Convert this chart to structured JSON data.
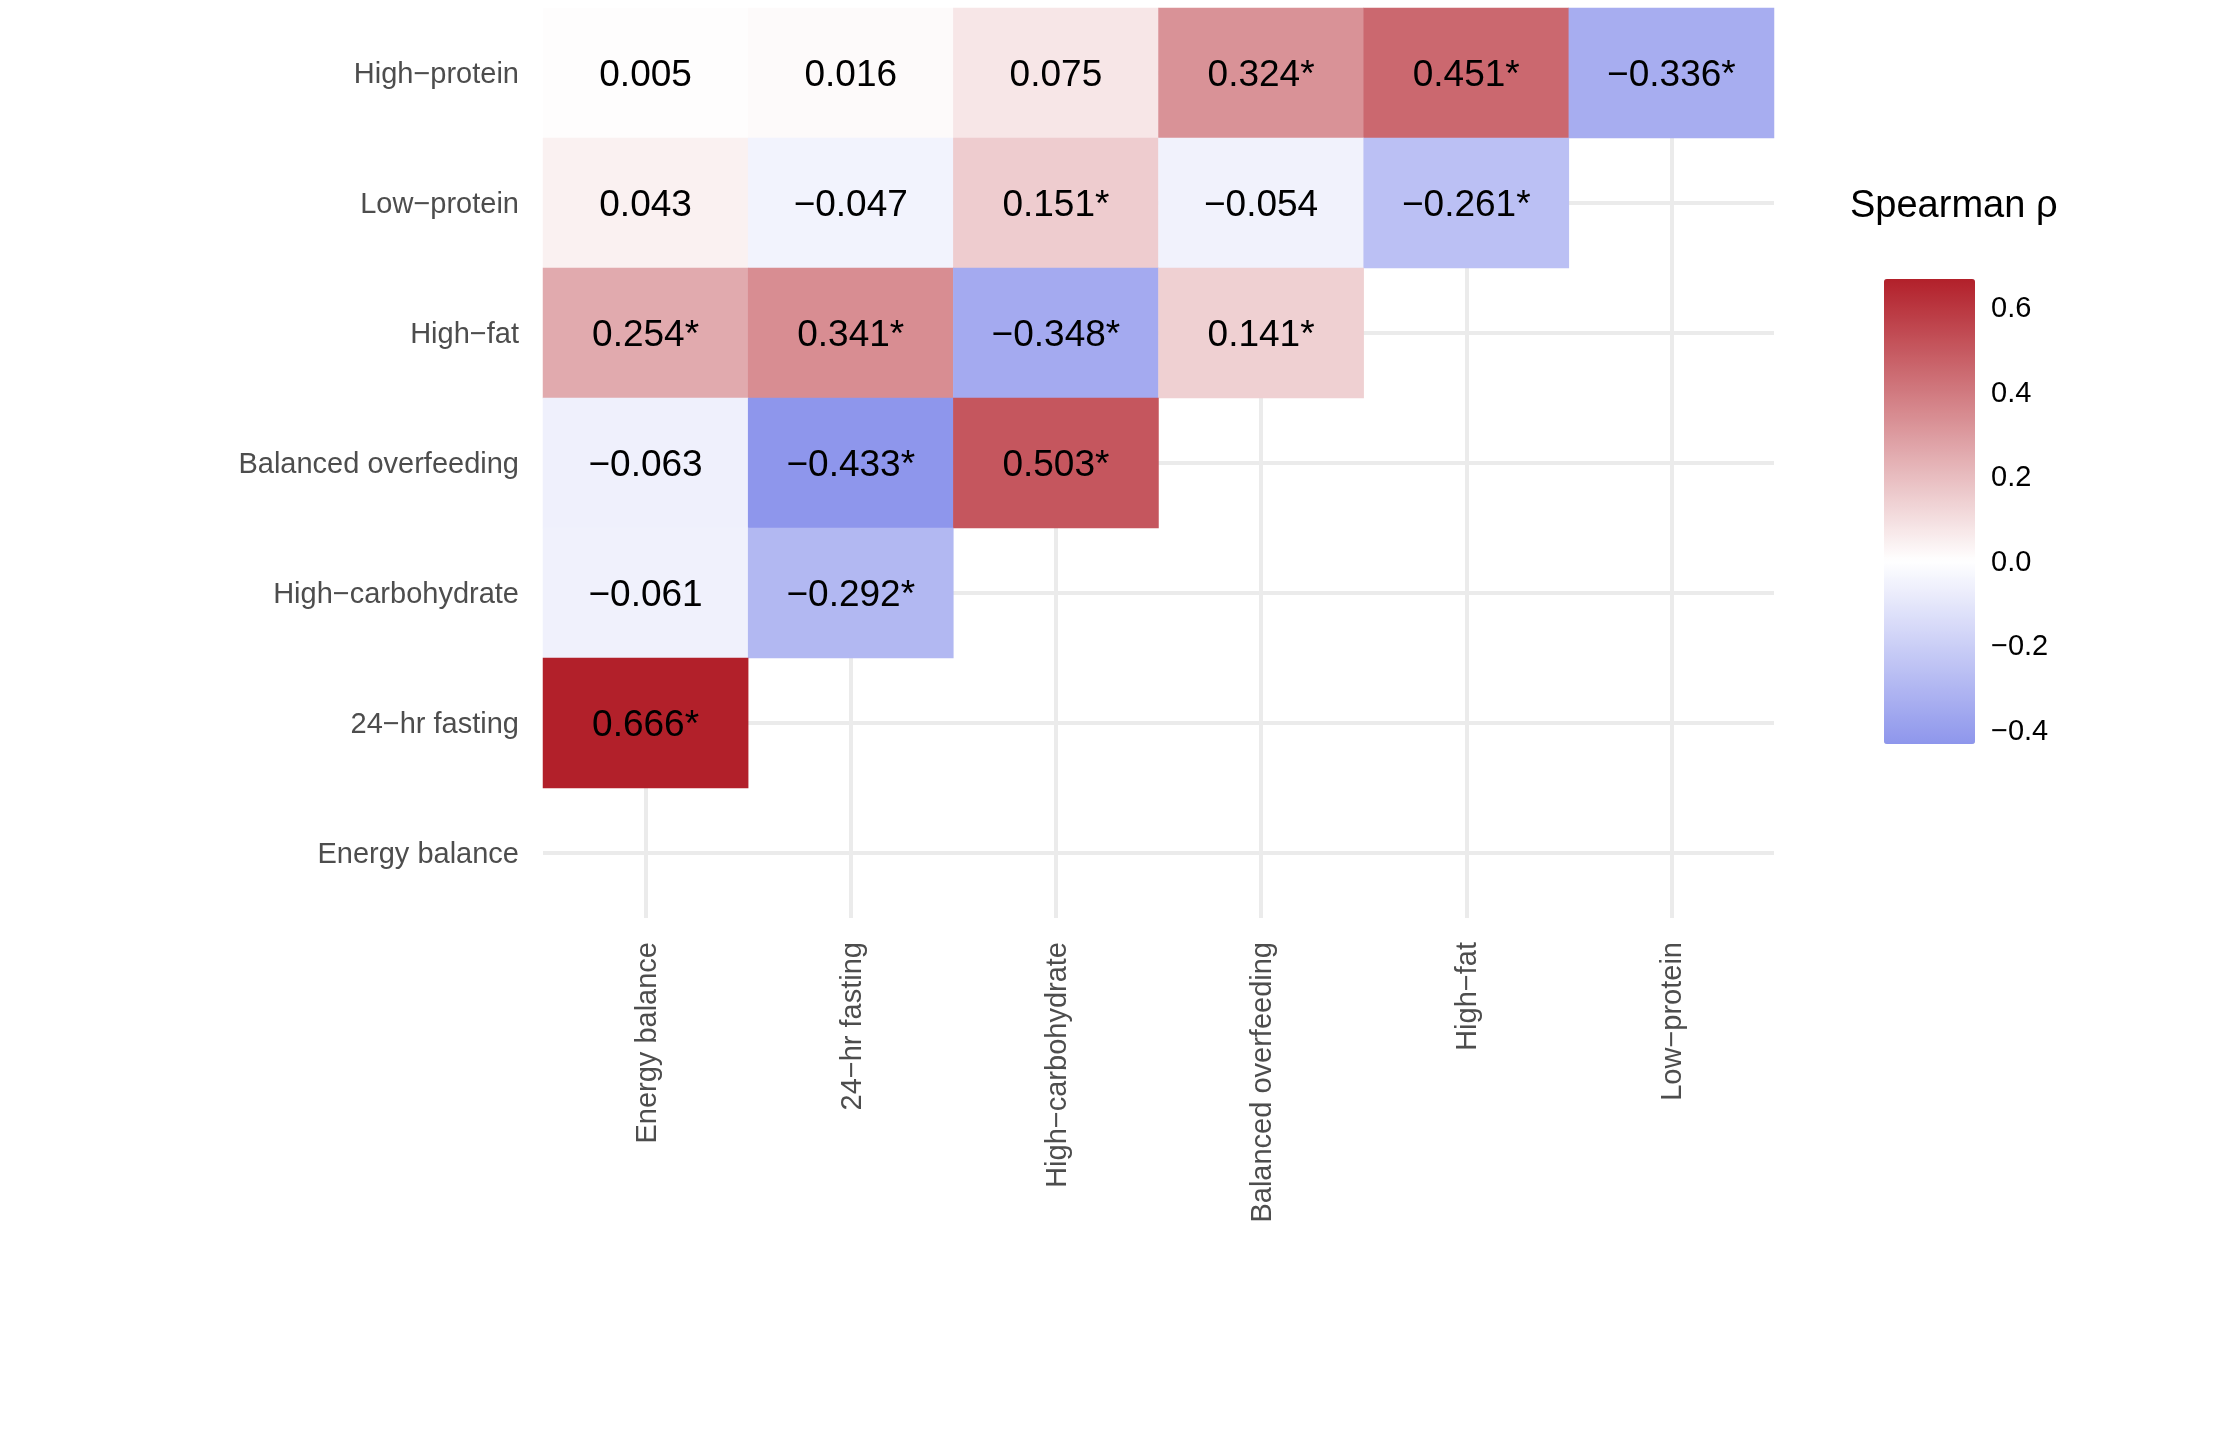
{
  "chart_data": {
    "type": "heatmap",
    "legend_title": "Spearman ρ",
    "grid": true,
    "categories": [
      "Energy balance",
      "24−hr fasting",
      "High−carbohydrate",
      "Balanced overfeeding",
      "High−fat",
      "Low−protein"
    ],
    "y_categories": [
      "High−protein",
      "Low−protein",
      "High−fat",
      "Balanced overfeeding",
      "High−carbohydrate",
      "24−hr fasting",
      "Energy balance"
    ],
    "cells": [
      [
        0.005,
        0.016,
        0.075,
        0.324,
        0.451,
        -0.336
      ],
      [
        0.043,
        -0.047,
        0.151,
        -0.054,
        -0.261,
        null
      ],
      [
        0.254,
        0.341,
        -0.348,
        0.141,
        null,
        null
      ],
      [
        -0.063,
        -0.433,
        0.503,
        null,
        null,
        null
      ],
      [
        -0.061,
        -0.292,
        null,
        null,
        null,
        null
      ],
      [
        0.666,
        null,
        null,
        null,
        null,
        null
      ],
      [
        null,
        null,
        null,
        null,
        null,
        null
      ]
    ],
    "cell_labels": [
      [
        "0.005",
        "0.016",
        "0.075",
        "0.324*",
        "0.451*",
        "−0.336*"
      ],
      [
        "0.043",
        "−0.047",
        "0.151*",
        "−0.054",
        "−0.261*",
        null
      ],
      [
        "0.254*",
        "0.341*",
        "−0.348*",
        "0.141*",
        null,
        null
      ],
      [
        "−0.063",
        "−0.433*",
        "0.503*",
        null,
        null,
        null
      ],
      [
        "−0.061",
        "−0.292*",
        null,
        null,
        null,
        null
      ],
      [
        "0.666*",
        null,
        null,
        null,
        null,
        null
      ],
      [
        null,
        null,
        null,
        null,
        null,
        null
      ]
    ],
    "colors": [
      "#8e96ec",
      "#ffffff",
      "#b2202a"
    ],
    "clim": [
      -0.433,
      0.666
    ],
    "cticks": [
      {
        "value": -0.4,
        "label": "−0.4"
      },
      {
        "value": -0.2,
        "label": "−0.2"
      },
      {
        "value": 0,
        "label": "0.0"
      },
      {
        "value": 0.2,
        "label": "0.2"
      },
      {
        "value": 0.4,
        "label": "0.4"
      },
      {
        "value": 0.6,
        "label": "0.6"
      }
    ]
  }
}
